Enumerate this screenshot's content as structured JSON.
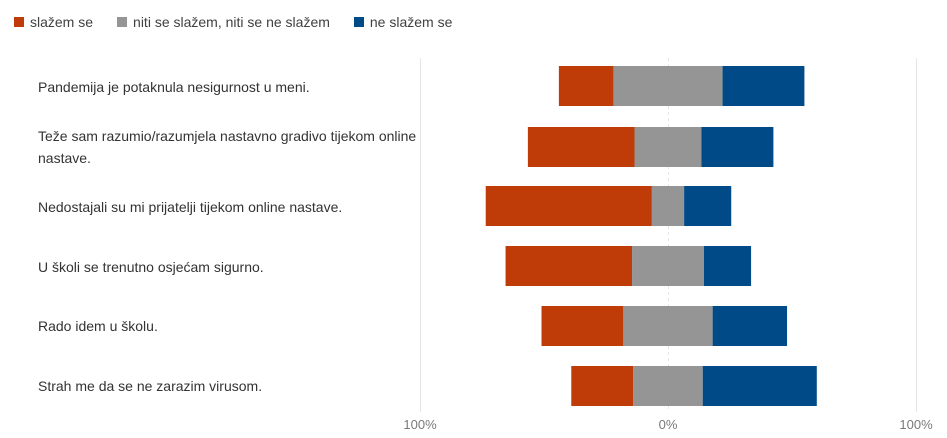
{
  "chart_data": {
    "type": "bar",
    "orientation": "horizontal",
    "stacked": "diverging",
    "title": "",
    "xlabel": "",
    "ylabel": "",
    "xlim": [
      -100,
      100
    ],
    "x_tick_labels": [
      "100%",
      "0%",
      "100%"
    ],
    "grid": true,
    "legend_position": "top-left",
    "categories": [
      "Pandemija je potaknula nesigurnost u meni.",
      "Teže sam razumio/razumjela nastavno gradivo tijekom online nastave.",
      "Nedostajali su mi prijatelji tijekom online nastave.",
      "U školi se trenutno osjećam sigurno.",
      "Rado idem u školu.",
      "Strah me da se ne zarazim virusom."
    ],
    "series": [
      {
        "name": "slažem se",
        "color": "#BF3B08",
        "values": [
          22,
          43,
          67,
          51,
          33,
          25
        ]
      },
      {
        "name": "niti se slažem, niti se ne slažem",
        "color": "#959595",
        "values": [
          44,
          27,
          13,
          29,
          36,
          28
        ]
      },
      {
        "name": "ne slažem se",
        "color": "#004A87",
        "values": [
          33,
          29,
          19,
          19,
          30,
          46
        ]
      }
    ]
  }
}
